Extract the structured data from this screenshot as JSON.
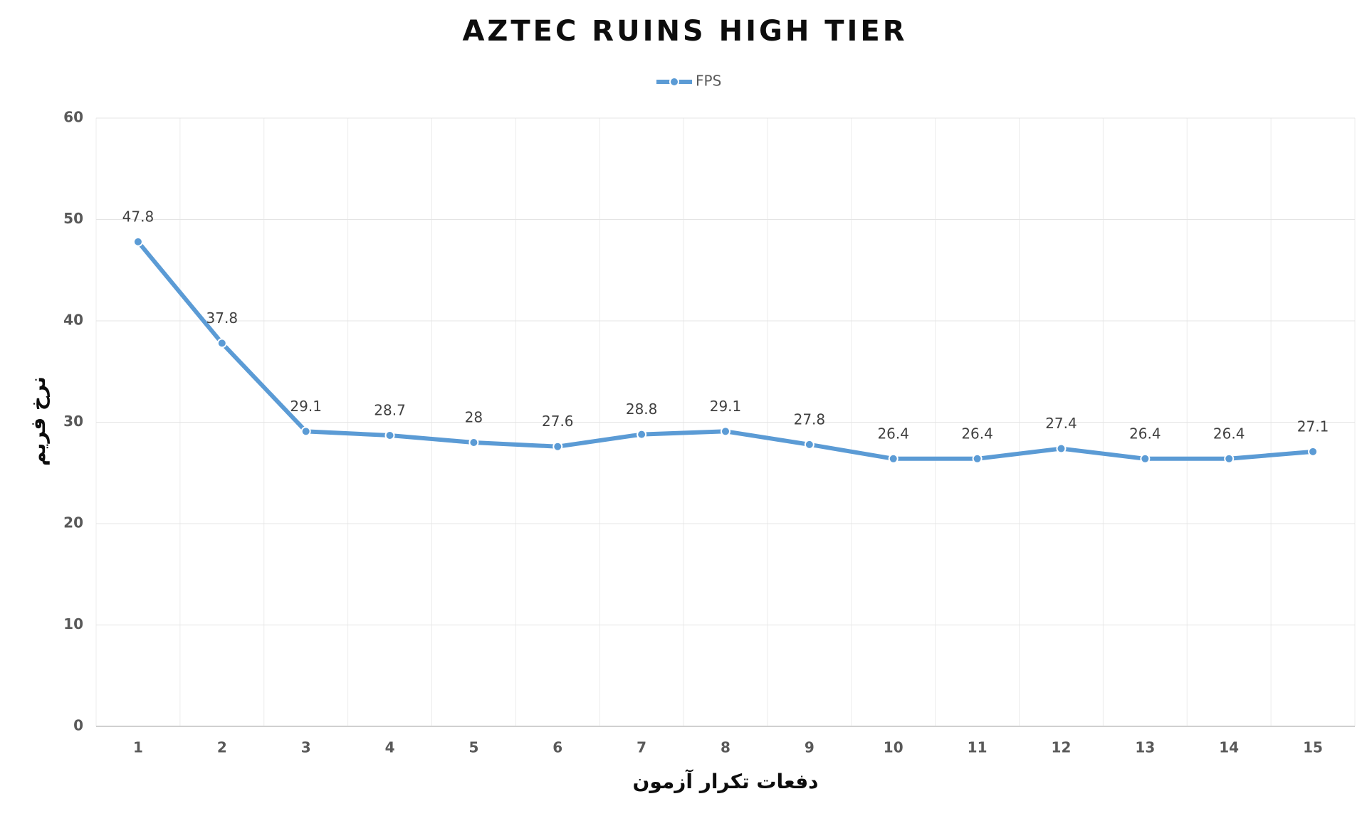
{
  "chart_data": {
    "type": "line",
    "title": "AZTEC RUINS HIGH TIER",
    "x_label": "دفعات تکرار آزمون",
    "y_label": "نرخ فریم",
    "categories": [
      "1",
      "2",
      "3",
      "4",
      "5",
      "6",
      "7",
      "8",
      "9",
      "10",
      "11",
      "12",
      "13",
      "14",
      "15"
    ],
    "series": [
      {
        "name": "FPS",
        "color": "#5b9bd5",
        "values": [
          47.8,
          37.8,
          29.1,
          28.7,
          28,
          27.6,
          28.8,
          29.1,
          27.8,
          26.4,
          26.4,
          27.4,
          26.4,
          26.4,
          27.1
        ]
      }
    ],
    "ylim": [
      0,
      60
    ],
    "yticks": [
      0,
      10,
      20,
      30,
      40,
      50,
      60
    ],
    "grid": true,
    "legend": "top"
  }
}
